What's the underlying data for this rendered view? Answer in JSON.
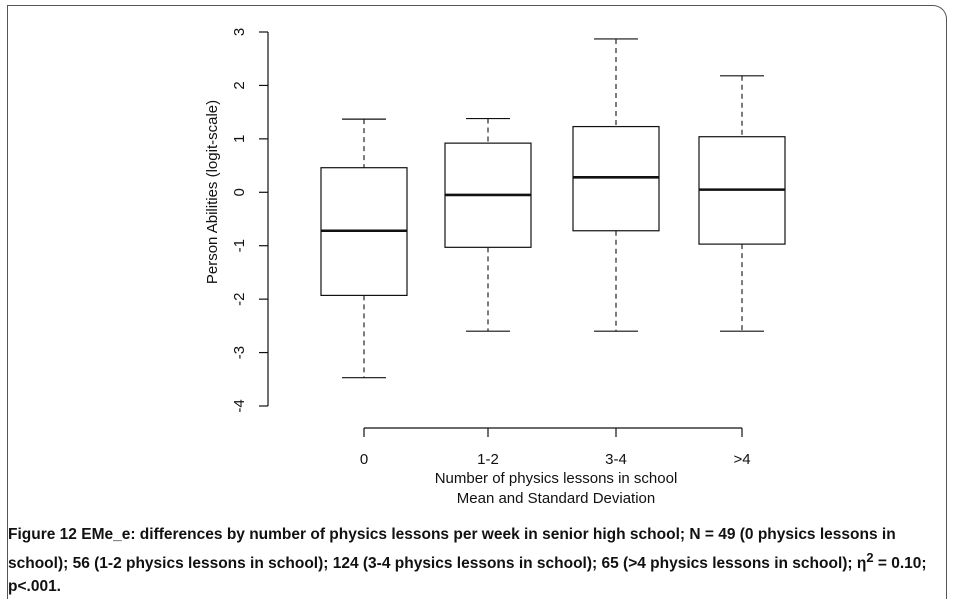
{
  "chart_data": {
    "type": "boxplot",
    "categories": [
      "0",
      "1-2",
      "3-4",
      ">4"
    ],
    "boxes": [
      {
        "category": "0",
        "whisker_low": -3.47,
        "q1": -1.93,
        "median": -0.72,
        "q3": 0.46,
        "whisker_high": 1.37
      },
      {
        "category": "1-2",
        "whisker_low": -2.6,
        "q1": -1.03,
        "median": -0.05,
        "q3": 0.92,
        "whisker_high": 1.38
      },
      {
        "category": "3-4",
        "whisker_low": -2.6,
        "q1": -0.72,
        "median": 0.28,
        "q3": 1.23,
        "whisker_high": 2.87
      },
      {
        "category": ">4",
        "whisker_low": -2.6,
        "q1": -0.97,
        "median": 0.05,
        "q3": 1.04,
        "whisker_high": 2.18
      }
    ],
    "ylabel": "Person Abilities (logit-scale)",
    "xlabel": "Number of physics lessons in school",
    "xlabel2": "Mean and Standard Deviation",
    "yticks": [
      -4,
      -3,
      -2,
      -1,
      0,
      1,
      2,
      3
    ],
    "ylim": [
      -4,
      3
    ]
  },
  "caption": {
    "label": "Figure 12",
    "text_1": " EMe_e: differences by number of physics lessons per week in senior high school; N = 49 (0 physics lessons in school); 56 (1-2 physics lessons in school); 124 (3-4 physics lessons in school); 65 (>4 physics lessons in school); η",
    "superscript": "2",
    "text_2": " = 0.10; p<.001."
  }
}
